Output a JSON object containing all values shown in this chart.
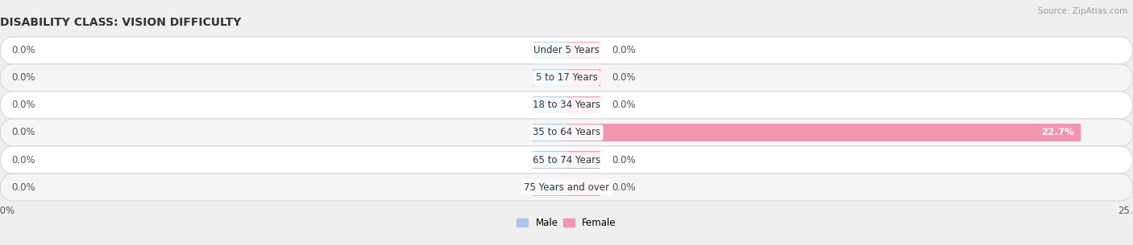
{
  "title": "DISABILITY CLASS: VISION DIFFICULTY",
  "source": "Source: ZipAtlas.com",
  "categories": [
    "Under 5 Years",
    "5 to 17 Years",
    "18 to 34 Years",
    "35 to 64 Years",
    "65 to 74 Years",
    "75 Years and over"
  ],
  "male_values": [
    0.0,
    0.0,
    0.0,
    0.0,
    0.0,
    0.0
  ],
  "female_values": [
    0.0,
    0.0,
    0.0,
    22.7,
    0.0,
    0.0
  ],
  "male_color": "#aec6e8",
  "female_color": "#f096b0",
  "xlim": [
    -25,
    25
  ],
  "bar_height": 0.62,
  "stub_size": 1.5,
  "background_color": "#efefef",
  "row_colors": [
    "#ffffff",
    "#f5f5f5"
  ],
  "label_fontsize": 8.5,
  "title_fontsize": 10,
  "legend_male": "Male",
  "legend_female": "Female",
  "value_label_color": "#555555",
  "inside_label_color": "#ffffff",
  "category_label_color": "#333333",
  "source_color": "#999999"
}
